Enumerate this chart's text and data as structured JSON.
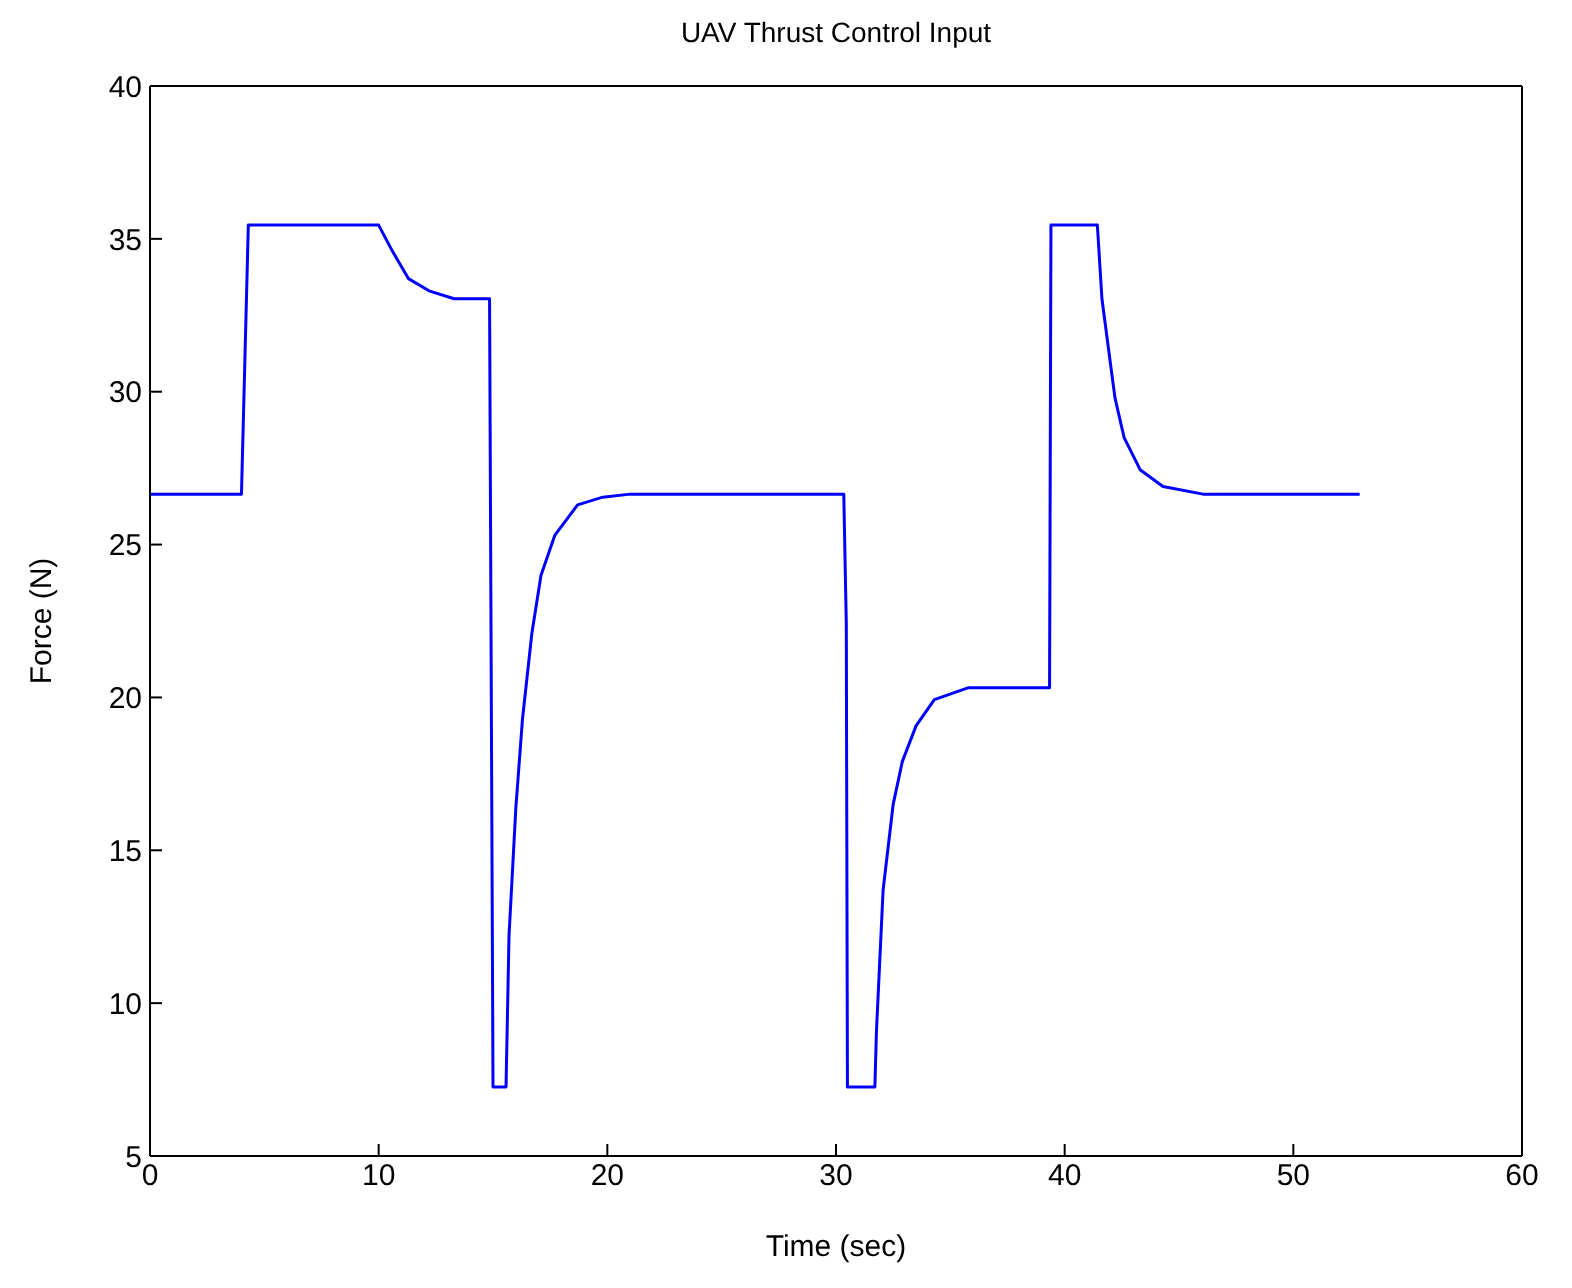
{
  "chart_data": {
    "type": "line",
    "title": "UAV Thrust Control Input",
    "xlabel": "Time (sec)",
    "ylabel": "Force (N)",
    "xlim": [
      0,
      60
    ],
    "xticks": [
      0,
      10,
      20,
      30,
      40,
      50,
      60
    ],
    "ylim": [
      5,
      40
    ],
    "yticks": [
      5,
      10,
      15,
      20,
      25,
      30,
      35,
      40
    ],
    "grid": false,
    "legend": false,
    "marker": "none",
    "line_style": "solid",
    "series": [
      {
        "color": "#0000ff",
        "x": [
          0,
          4.0,
          4.3,
          10.0,
          10.6,
          11.3,
          12.2,
          13.3,
          14.85,
          15.0,
          15.57,
          15.7,
          16.0,
          16.29,
          16.7,
          17.1,
          17.7,
          18.7,
          19.8,
          21.0,
          30.34,
          30.45,
          30.5,
          31.7,
          31.77,
          32.06,
          32.5,
          32.9,
          33.5,
          34.3,
          35.8,
          39.34,
          39.4,
          41.43,
          41.63,
          41.9,
          42.2,
          42.6,
          43.3,
          44.3,
          46.05,
          52.9
        ],
        "values": [
          26.65,
          26.65,
          35.45,
          35.45,
          34.6,
          33.7,
          33.3,
          33.04,
          33.04,
          7.26,
          7.26,
          12.2,
          16.4,
          19.3,
          22.1,
          24.0,
          25.3,
          26.3,
          26.55,
          26.65,
          26.65,
          22.4,
          7.26,
          7.26,
          9.1,
          13.7,
          16.5,
          17.9,
          19.07,
          19.93,
          20.32,
          20.32,
          35.45,
          35.45,
          33.04,
          31.5,
          29.8,
          28.5,
          27.45,
          26.9,
          26.65,
          26.65
        ]
      }
    ]
  }
}
